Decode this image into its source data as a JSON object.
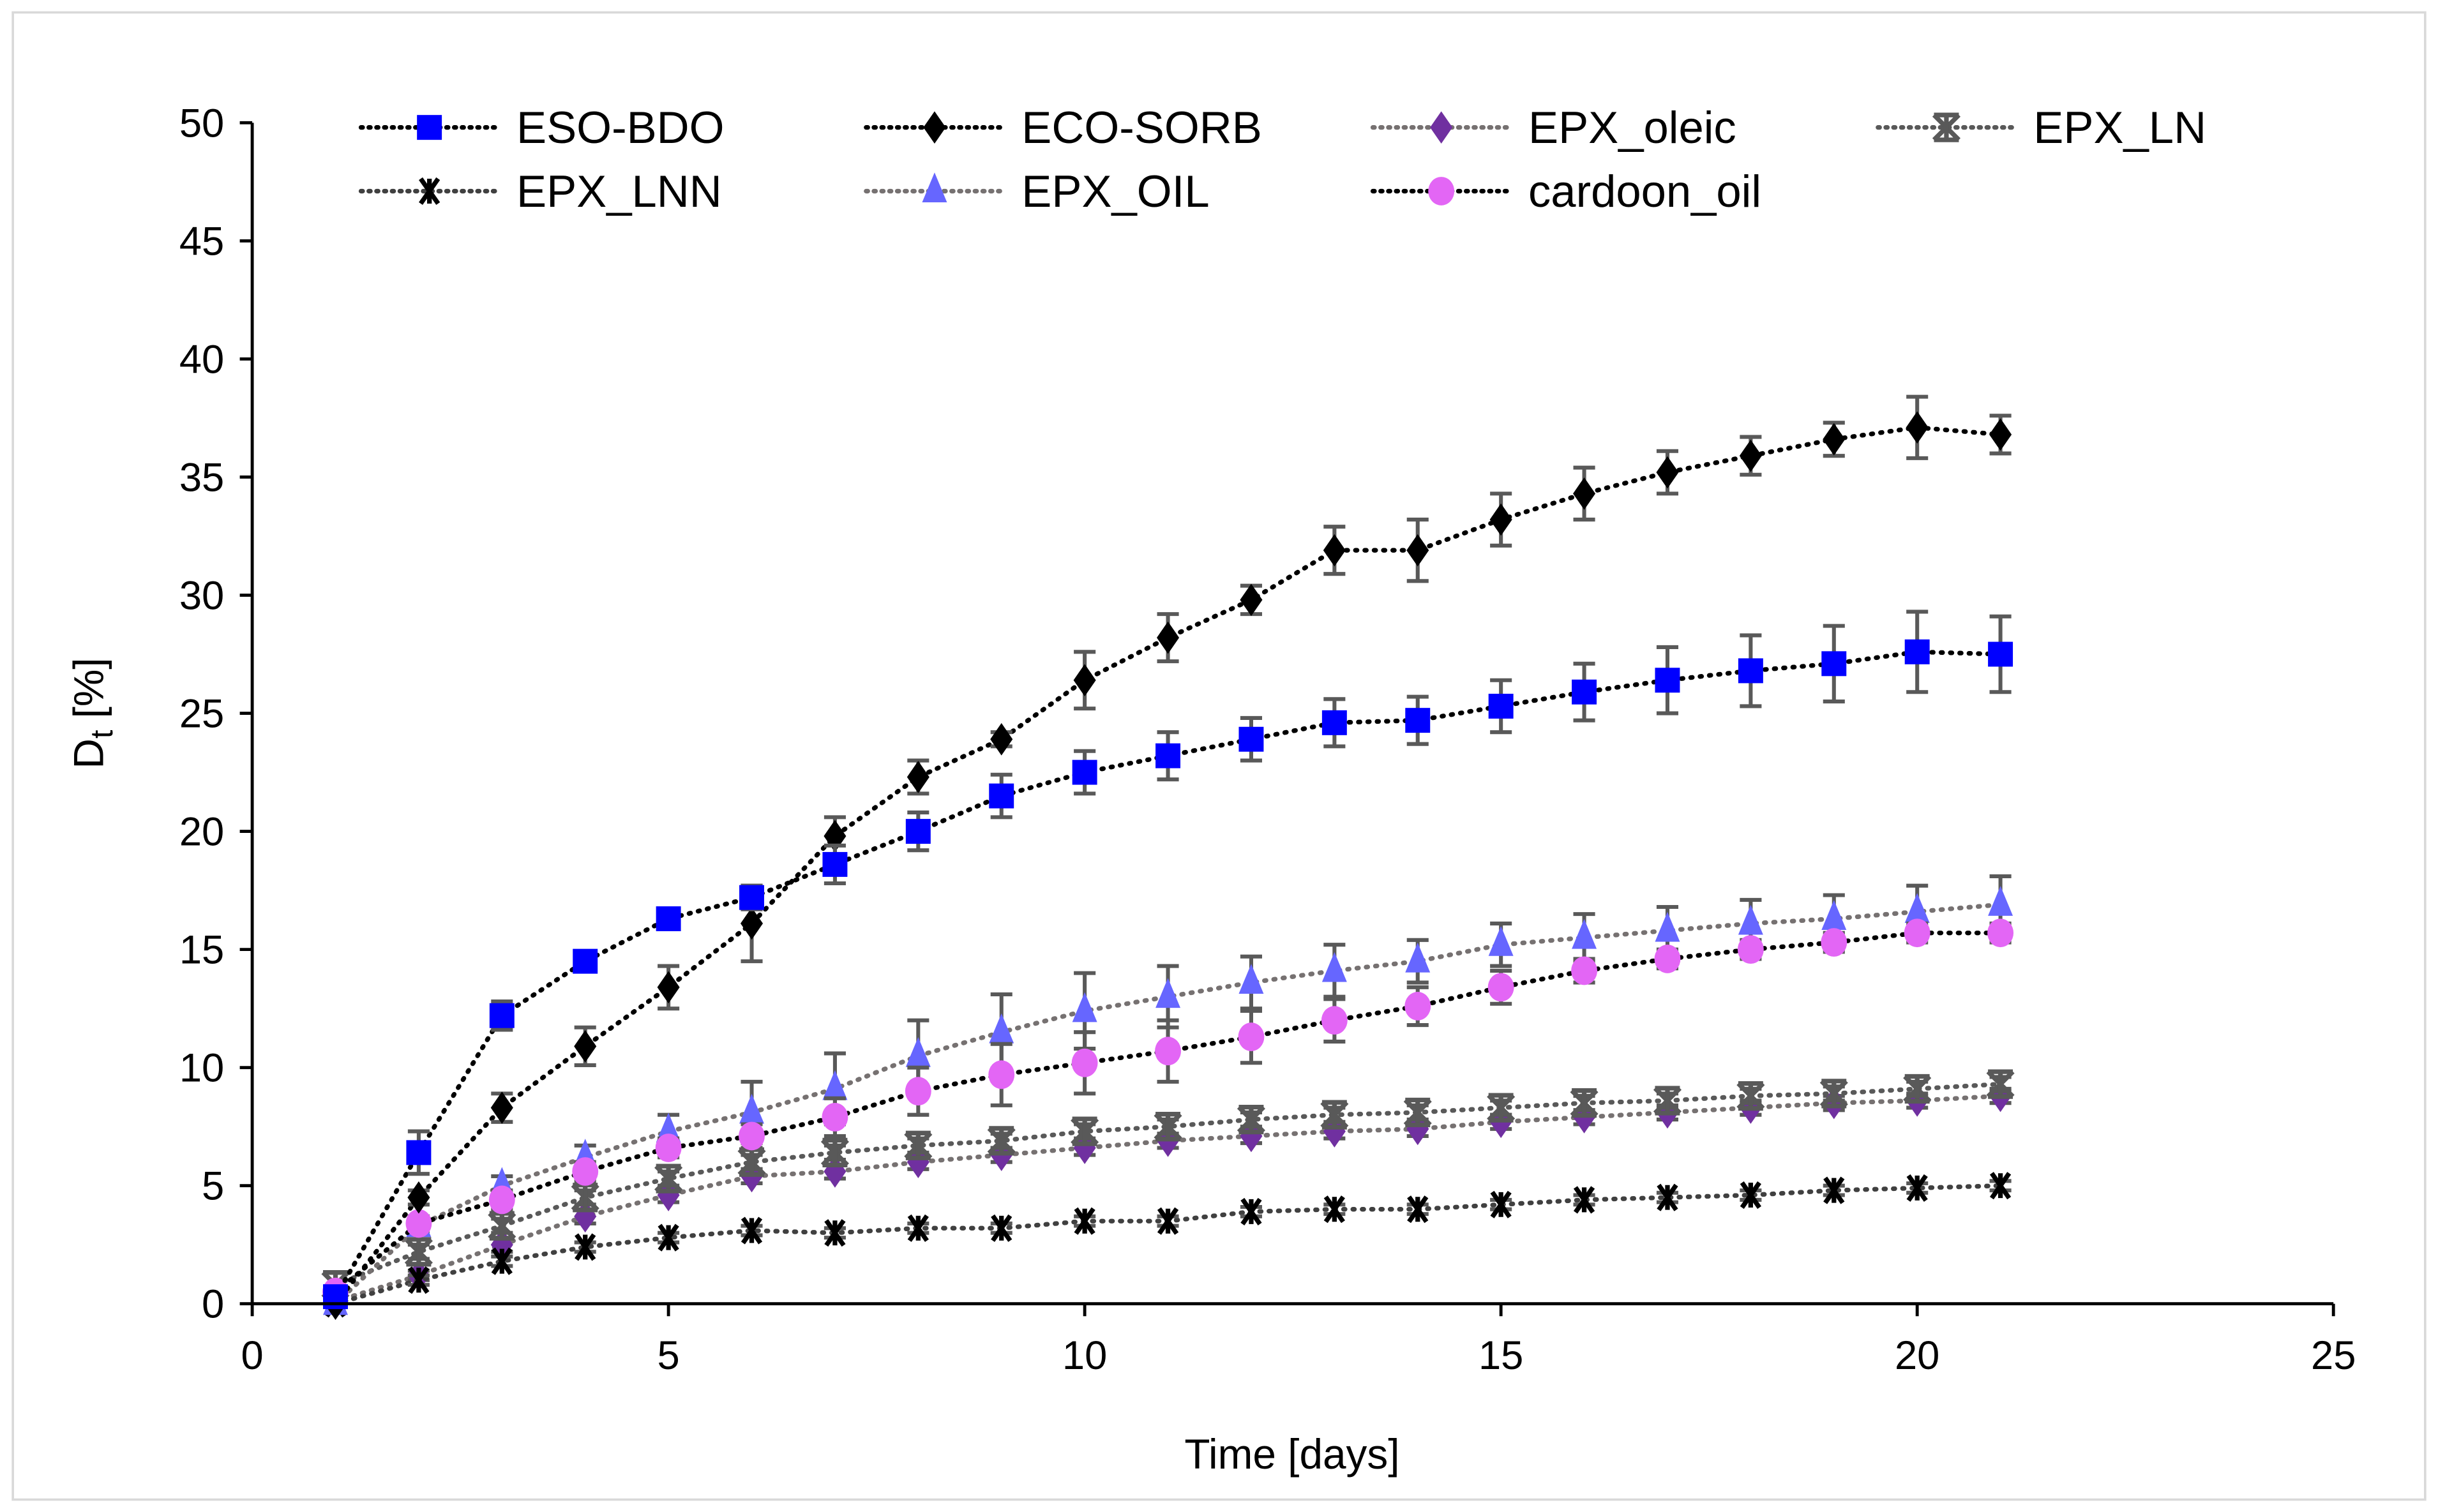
{
  "chart_data": {
    "type": "line",
    "title": "",
    "xlabel": "Time [days]",
    "ylabel_main": "D",
    "ylabel_sub": "t",
    "ylabel_unit": " [%]",
    "xlim": [
      0,
      25
    ],
    "ylim": [
      0,
      50
    ],
    "xticks": [
      0,
      5,
      10,
      15,
      20,
      25
    ],
    "yticks": [
      0,
      5,
      10,
      15,
      20,
      25,
      30,
      35,
      40,
      45,
      50
    ],
    "grid": false,
    "legend_position": "top",
    "x": [
      1,
      2,
      3,
      4,
      5,
      6,
      7,
      8,
      9,
      10,
      11,
      12,
      13,
      14,
      15,
      16,
      17,
      18,
      19,
      20,
      21
    ],
    "series": [
      {
        "name": "ESO-BDO",
        "marker": "square",
        "color": "#0000FF",
        "line_color": "#000000",
        "values": [
          0.3,
          6.4,
          12.2,
          14.5,
          16.3,
          17.2,
          18.6,
          20.0,
          21.5,
          22.5,
          23.2,
          23.9,
          24.6,
          24.7,
          25.3,
          25.9,
          26.4,
          26.8,
          27.1,
          27.6,
          27.5
        ],
        "errors": [
          0,
          0.9,
          0.6,
          0.2,
          0.3,
          0.5,
          0.8,
          0.8,
          0.9,
          0.9,
          1.0,
          0.9,
          1.0,
          1.0,
          1.1,
          1.2,
          1.4,
          1.5,
          1.6,
          1.7,
          1.6
        ]
      },
      {
        "name": "ECO-SORB",
        "marker": "diamond",
        "color": "#000000",
        "line_color": "#000000",
        "values": [
          0,
          4.5,
          8.3,
          10.9,
          13.4,
          16.1,
          19.8,
          22.3,
          23.9,
          26.4,
          28.2,
          29.8,
          31.9,
          31.9,
          33.2,
          34.3,
          35.2,
          35.9,
          36.6,
          37.1,
          36.8
        ],
        "errors": [
          0,
          0.3,
          0.6,
          0.8,
          0.9,
          1.6,
          0.8,
          0.7,
          0.3,
          1.2,
          1.0,
          0.6,
          1.0,
          1.3,
          1.1,
          1.1,
          0.9,
          0.8,
          0.7,
          1.3,
          0.8
        ]
      },
      {
        "name": "EPX_oleic",
        "marker": "diamond",
        "color": "#7030A0",
        "line_color": "#767171",
        "values": [
          0.1,
          1.2,
          2.5,
          3.7,
          4.6,
          5.4,
          5.6,
          6.0,
          6.3,
          6.6,
          6.9,
          7.1,
          7.3,
          7.4,
          7.7,
          7.9,
          8.1,
          8.3,
          8.5,
          8.6,
          8.8
        ],
        "errors": [
          0,
          0.2,
          0.3,
          0.3,
          0.3,
          0.3,
          0.3,
          0.3,
          0.3,
          0.3,
          0.3,
          0.3,
          0.3,
          0.3,
          0.3,
          0.3,
          0.3,
          0.3,
          0.3,
          0.3,
          0.3
        ]
      },
      {
        "name": "EPX_LN",
        "marker": "star",
        "color": "#595959",
        "line_color": "#595959",
        "values": [
          0.8,
          2.2,
          3.3,
          4.5,
          5.3,
          6.0,
          6.4,
          6.7,
          6.9,
          7.3,
          7.5,
          7.8,
          8.0,
          8.1,
          8.3,
          8.5,
          8.6,
          8.8,
          8.9,
          9.1,
          9.3
        ],
        "errors": [
          0,
          0.3,
          0.3,
          0.3,
          0.3,
          0.3,
          0.3,
          0.3,
          0.3,
          0.3,
          0.3,
          0.3,
          0.3,
          0.3,
          0.3,
          0.3,
          0.3,
          0.3,
          0.3,
          0.3,
          0.3
        ]
      },
      {
        "name": "EPX_LNN",
        "marker": "asterisk",
        "color": "#000000",
        "line_color": "#404040",
        "values": [
          0,
          1.0,
          1.8,
          2.4,
          2.8,
          3.1,
          3.0,
          3.2,
          3.2,
          3.5,
          3.5,
          3.9,
          4.0,
          4.0,
          4.2,
          4.4,
          4.5,
          4.6,
          4.8,
          4.9,
          5.0
        ],
        "errors": [
          0,
          0.2,
          0.2,
          0.2,
          0.2,
          0.2,
          0.2,
          0.2,
          0.2,
          0.2,
          0.2,
          0.2,
          0.2,
          0.2,
          0.2,
          0.2,
          0.2,
          0.2,
          0.2,
          0.2,
          0.2
        ]
      },
      {
        "name": "EPX_OIL",
        "marker": "triangle",
        "color": "#6666FF",
        "line_color": "#767171",
        "values": [
          0,
          3.3,
          5.0,
          6.2,
          7.3,
          8.1,
          9.1,
          10.5,
          11.5,
          12.4,
          13.0,
          13.6,
          14.1,
          14.5,
          15.2,
          15.5,
          15.8,
          16.1,
          16.3,
          16.6,
          16.9
        ],
        "errors": [
          0,
          0.3,
          0.4,
          0.5,
          0.7,
          1.3,
          1.5,
          1.5,
          1.6,
          1.6,
          1.3,
          1.1,
          1.1,
          0.9,
          0.9,
          1.0,
          1.0,
          1.0,
          1.0,
          1.1,
          1.2
        ]
      },
      {
        "name": "cardoon_oil",
        "marker": "circle",
        "color": "#E366F5",
        "line_color": "#000000",
        "values": [
          0.5,
          3.4,
          4.4,
          5.6,
          6.6,
          7.1,
          7.9,
          9.0,
          9.7,
          10.2,
          10.7,
          11.3,
          12.0,
          12.6,
          13.4,
          14.1,
          14.6,
          15.0,
          15.3,
          15.7,
          15.7
        ],
        "errors": [
          0,
          0.3,
          0.4,
          0.4,
          0.4,
          0.5,
          0.8,
          1.0,
          1.3,
          1.3,
          1.3,
          1.1,
          0.9,
          0.8,
          0.7,
          0.5,
          0.4,
          0.4,
          0.4,
          0.4,
          0.4
        ]
      }
    ]
  }
}
